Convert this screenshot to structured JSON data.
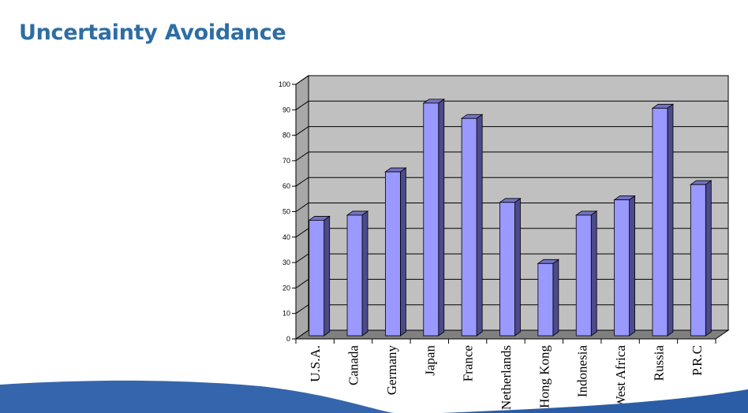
{
  "slide": {
    "title": "Uncertainty Avoidance"
  },
  "chart_data": {
    "type": "bar",
    "categories": [
      "U.S.A.",
      "Canada",
      "Germany",
      "Japan",
      "France",
      "Netherlands",
      "Hong Kong",
      "Indonesia",
      "West Africa",
      "Russia",
      "P.R.C"
    ],
    "values": [
      46,
      48,
      65,
      92,
      86,
      53,
      29,
      48,
      54,
      90,
      60
    ],
    "ylim": [
      0,
      100
    ],
    "yticks": [
      0,
      10,
      20,
      30,
      40,
      50,
      60,
      70,
      80,
      90,
      100
    ],
    "grid": true,
    "legend": "none",
    "colors": {
      "bar_front": "#9999ff",
      "bar_side": "#4b4b8c",
      "bar_top": "#7373c6",
      "back_wall": "#c0c0c0",
      "floor": "#808080"
    }
  }
}
